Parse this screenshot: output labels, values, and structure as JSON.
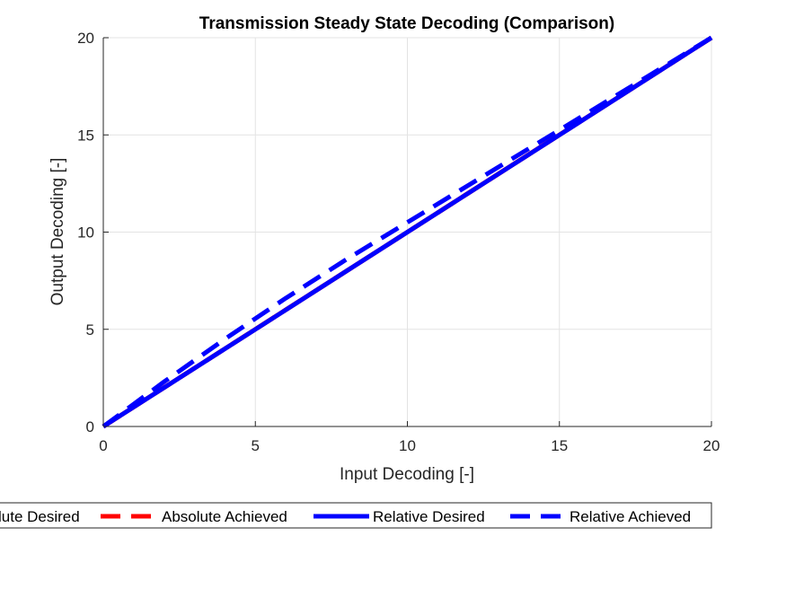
{
  "chart_data": {
    "type": "line",
    "title": "Transmission Steady State Decoding (Comparison)",
    "xlabel": "Input Decoding [-]",
    "ylabel": "Output Decoding [-]",
    "xlim": [
      0,
      20
    ],
    "ylim": [
      0,
      20
    ],
    "xticks": [
      "0",
      "5",
      "10",
      "15",
      "20"
    ],
    "yticks": [
      "0",
      "5",
      "10",
      "15",
      "20"
    ],
    "grid": true,
    "legend_position": "bottom, outside",
    "series": [
      {
        "name": "Absolute Desired",
        "legend_text": "lute Desired",
        "color": "#ff0000",
        "style": "solid",
        "x": [
          0,
          20
        ],
        "y": [
          0,
          20
        ]
      },
      {
        "name": "Absolute Achieved",
        "legend_text": "Absolute Achieved",
        "color": "#ff0000",
        "style": "dashed",
        "x": [
          0,
          20
        ],
        "y": [
          0,
          20
        ]
      },
      {
        "name": "Relative Desired",
        "legend_text": "Relative Desired",
        "color": "#0000ff",
        "style": "solid",
        "x": [
          0,
          5,
          10,
          15,
          20
        ],
        "y": [
          0,
          5,
          10,
          15,
          20
        ]
      },
      {
        "name": "Relative Achieved",
        "legend_text": "Relative Achieved",
        "color": "#0000ff",
        "style": "dashed",
        "x": [
          0,
          2,
          4,
          6,
          8,
          10,
          12,
          14,
          16,
          18,
          20
        ],
        "y": [
          0,
          2.3,
          4.5,
          6.6,
          8.6,
          10.5,
          12.4,
          14.3,
          16.2,
          18.1,
          20
        ]
      }
    ]
  }
}
